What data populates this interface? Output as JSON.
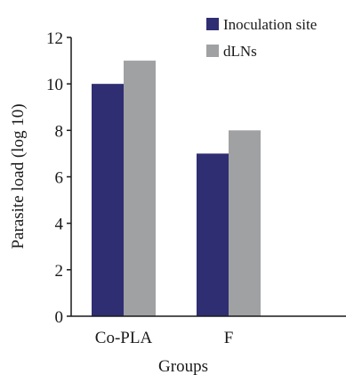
{
  "chart_data": {
    "type": "bar",
    "title": "",
    "xlabel": "Groups",
    "ylabel": "Parasite load (log 10)",
    "categories": [
      "Co-PLA",
      "F"
    ],
    "series": [
      {
        "name": "Inoculation site",
        "values": [
          10,
          7
        ],
        "color": "#2f2e72"
      },
      {
        "name": "dLNs",
        "values": [
          11,
          8
        ],
        "color": "#a0a1a3"
      }
    ],
    "ylim": [
      0,
      12
    ],
    "yticks": [
      0,
      2,
      4,
      6,
      8,
      10,
      12
    ],
    "grid": false,
    "legend_position": "top-right"
  }
}
